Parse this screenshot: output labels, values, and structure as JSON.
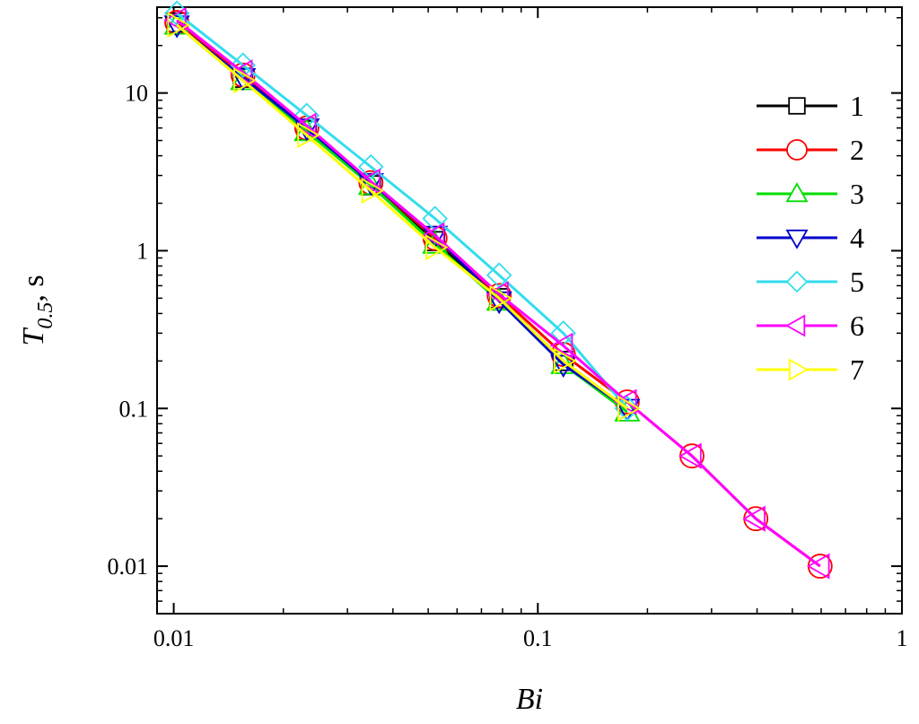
{
  "chart_data": {
    "type": "line",
    "xlabel": "Bi",
    "ylabel_main": "T",
    "ylabel_sub": "0.5",
    "ylabel_unit": ", s",
    "x_scale": "log",
    "y_scale": "log",
    "xlim": [
      0.009,
      1
    ],
    "ylim": [
      0.005,
      35
    ],
    "x_ticks": [
      {
        "value": 0.01,
        "label": "0.01"
      },
      {
        "value": 0.1,
        "label": "0.1"
      },
      {
        "value": 1,
        "label": "1"
      }
    ],
    "y_ticks": [
      {
        "value": 0.01,
        "label": "0.01"
      },
      {
        "value": 0.1,
        "label": "0.1"
      },
      {
        "value": 1,
        "label": "1"
      },
      {
        "value": 10,
        "label": "10"
      }
    ],
    "grid": false,
    "legend_position": "top-right",
    "series": [
      {
        "name": "1",
        "color": "#000000",
        "marker": "square",
        "x": [
          0.0102,
          0.0155,
          0.0232,
          0.0348,
          0.0522,
          0.0783,
          0.1175
        ],
        "y": [
          28,
          12.5,
          5.8,
          2.6,
          1.15,
          0.5,
          0.2
        ]
      },
      {
        "name": "2",
        "color": "#ff0000",
        "marker": "circle",
        "x": [
          0.0102,
          0.0155,
          0.0232,
          0.0348,
          0.0522,
          0.0783,
          0.1175,
          0.176,
          0.265,
          0.397,
          0.596
        ],
        "y": [
          28,
          13,
          6,
          2.7,
          1.2,
          0.52,
          0.22,
          0.11,
          0.05,
          0.02,
          0.01
        ]
      },
      {
        "name": "3",
        "color": "#00dd00",
        "marker": "triangle-up",
        "x": [
          0.0102,
          0.0155,
          0.0232,
          0.0348,
          0.0522,
          0.0783,
          0.1175,
          0.176
        ],
        "y": [
          27,
          12,
          5.7,
          2.6,
          1.1,
          0.48,
          0.19,
          0.095
        ]
      },
      {
        "name": "4",
        "color": "#0000cc",
        "marker": "triangle-down",
        "x": [
          0.0102,
          0.0155,
          0.0232,
          0.0348,
          0.0522,
          0.0783,
          0.1175,
          0.176
        ],
        "y": [
          27,
          12.5,
          6,
          2.7,
          1.25,
          0.48,
          0.19,
          0.1
        ]
      },
      {
        "name": "5",
        "color": "#33ddee",
        "marker": "diamond",
        "x": [
          0.0102,
          0.0155,
          0.0232,
          0.0348,
          0.0522,
          0.0783,
          0.1175,
          0.176
        ],
        "y": [
          32,
          15,
          7.2,
          3.4,
          1.6,
          0.7,
          0.3,
          0.1
        ]
      },
      {
        "name": "6",
        "color": "#ff00ff",
        "marker": "triangle-left",
        "x": [
          0.0102,
          0.0155,
          0.0232,
          0.0348,
          0.0522,
          0.0783,
          0.1175,
          0.176,
          0.265,
          0.397,
          0.596
        ],
        "y": [
          29,
          13.5,
          6.2,
          2.75,
          1.25,
          0.53,
          0.25,
          0.11,
          0.05,
          0.02,
          0.01
        ]
      },
      {
        "name": "7",
        "color": "#ffff00",
        "marker": "triangle-right",
        "x": [
          0.0102,
          0.0155,
          0.0232,
          0.0348,
          0.0522,
          0.0783,
          0.1175,
          0.176
        ],
        "y": [
          27,
          12,
          5.4,
          2.4,
          1.05,
          0.5,
          0.2,
          0.1
        ]
      }
    ]
  }
}
